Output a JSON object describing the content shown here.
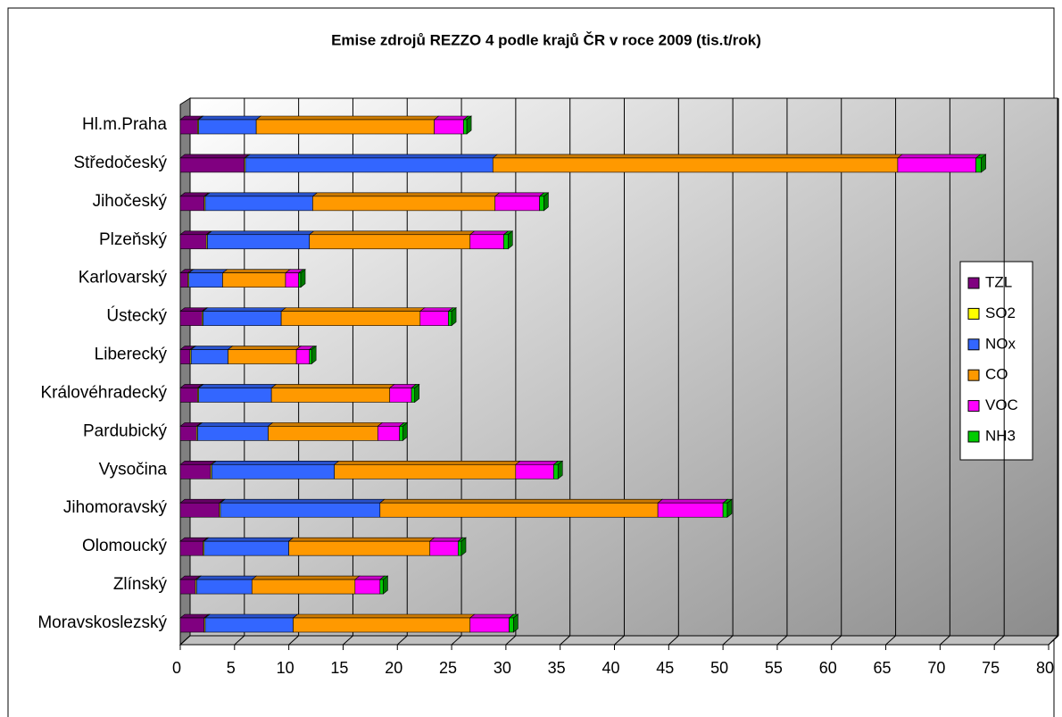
{
  "chart_data": {
    "type": "bar",
    "orientation": "horizontal",
    "stacked": true,
    "title": "Emise zdrojů REZZO 4 podle krajů ČR v roce 2009 (tis.t/rok)",
    "categories": [
      "Hl.m.Praha",
      "Středočeský",
      "Jihočeský",
      "Plzeňský",
      "Karlovarský",
      "Ústecký",
      "Liberecký",
      "Královéhradecký",
      "Pardubický",
      "Vysočina",
      "Jihomoravský",
      "Olomoucký",
      "Zlínský",
      "Moravskoslezský"
    ],
    "series": [
      {
        "name": "TZL",
        "color": "#800080",
        "values": [
          1.6,
          5.9,
          2.2,
          2.4,
          0.7,
          2.0,
          0.9,
          1.6,
          1.5,
          2.8,
          3.6,
          2.1,
          1.4,
          2.2
        ]
      },
      {
        "name": "SO2",
        "color": "#ffff00",
        "values": [
          0.1,
          0.1,
          0.1,
          0.1,
          0.1,
          0.1,
          0.1,
          0.1,
          0.1,
          0.1,
          0.1,
          0.1,
          0.1,
          0.1
        ]
      },
      {
        "name": "NOx",
        "color": "#3366ff",
        "values": [
          5.3,
          22.8,
          9.9,
          9.4,
          3.1,
          7.2,
          3.4,
          6.7,
          6.5,
          11.3,
          14.7,
          7.8,
          5.1,
          8.1
        ]
      },
      {
        "name": "CO",
        "color": "#ff9900",
        "values": [
          16.4,
          37.3,
          16.8,
          14.8,
          5.8,
          12.8,
          6.3,
          10.9,
          10.1,
          16.7,
          25.6,
          13.0,
          9.5,
          16.3
        ]
      },
      {
        "name": "VOC",
        "color": "#ff00ff",
        "values": [
          2.7,
          7.2,
          4.1,
          3.1,
          1.2,
          2.6,
          1.2,
          2.0,
          2.0,
          3.5,
          6.0,
          2.6,
          2.3,
          3.6
        ]
      },
      {
        "name": "NH3",
        "color": "#00cc00",
        "values": [
          0.3,
          0.5,
          0.4,
          0.4,
          0.2,
          0.3,
          0.2,
          0.3,
          0.3,
          0.4,
          0.4,
          0.3,
          0.3,
          0.4
        ]
      }
    ],
    "xlim": [
      0,
      80
    ],
    "xticks": [
      0,
      5,
      10,
      15,
      20,
      25,
      30,
      35,
      40,
      45,
      50,
      55,
      60,
      65,
      70,
      75,
      80
    ],
    "grid": true,
    "legend": "right"
  }
}
